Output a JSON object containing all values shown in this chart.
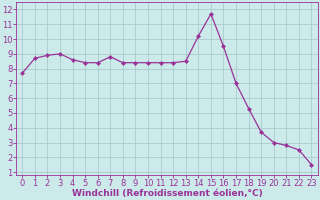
{
  "x": [
    0,
    1,
    2,
    3,
    4,
    5,
    6,
    7,
    8,
    9,
    10,
    11,
    12,
    13,
    14,
    15,
    16,
    17,
    18,
    19,
    20,
    21,
    22,
    23
  ],
  "y": [
    7.7,
    8.7,
    8.9,
    9.0,
    8.6,
    8.4,
    8.4,
    8.8,
    8.4,
    8.4,
    8.4,
    8.4,
    8.4,
    8.5,
    10.2,
    11.7,
    9.5,
    7.0,
    5.3,
    3.7,
    3.0,
    2.8,
    2.5,
    1.5
  ],
  "line_color": "#993399",
  "marker": "D",
  "marker_size": 2.0,
  "bg_color": "#cceaea",
  "grid_color": "#aacccc",
  "xlabel": "Windchill (Refroidissement éolien,°C)",
  "xlim": [
    -0.5,
    23.5
  ],
  "ylim": [
    0.8,
    12.5
  ],
  "yticks": [
    1,
    2,
    3,
    4,
    5,
    6,
    7,
    8,
    9,
    10,
    11,
    12
  ],
  "xticks": [
    0,
    1,
    2,
    3,
    4,
    5,
    6,
    7,
    8,
    9,
    10,
    11,
    12,
    13,
    14,
    15,
    16,
    17,
    18,
    19,
    20,
    21,
    22,
    23
  ],
  "label_fontsize": 6.5,
  "tick_fontsize": 6.0
}
